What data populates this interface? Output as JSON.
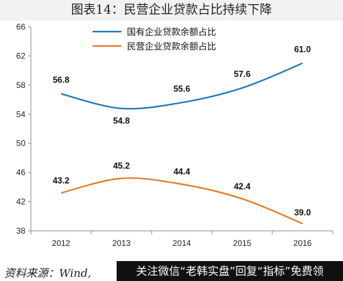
{
  "title": "图表14：民营企业贷款占比持续下降",
  "source": "资料来源：Wind,",
  "promo": "关注微信“老韩实盘”回复“指标”免费领",
  "chart_data": {
    "type": "line",
    "categories": [
      "2012",
      "2013",
      "2014",
      "2015",
      "2016"
    ],
    "series": [
      {
        "name": "国有企业贷款余额占比",
        "values": [
          56.8,
          54.8,
          55.6,
          57.6,
          61.0
        ],
        "labels": [
          "56.8",
          "54.8",
          "55.6",
          "57.6",
          "61.0"
        ],
        "color": "#1f77b4"
      },
      {
        "name": "民营企业贷款余额占比",
        "values": [
          43.2,
          45.2,
          44.4,
          42.4,
          39.0
        ],
        "labels": [
          "43.2",
          "45.2",
          "44.4",
          "42.4",
          "39.0"
        ],
        "color": "#e87722"
      }
    ],
    "ylim": [
      38,
      66
    ],
    "yticks": [
      "38",
      "42",
      "46",
      "50",
      "54",
      "58",
      "62",
      "66"
    ],
    "grid": false,
    "legend": "top-left",
    "xlabel": "",
    "ylabel": ""
  }
}
